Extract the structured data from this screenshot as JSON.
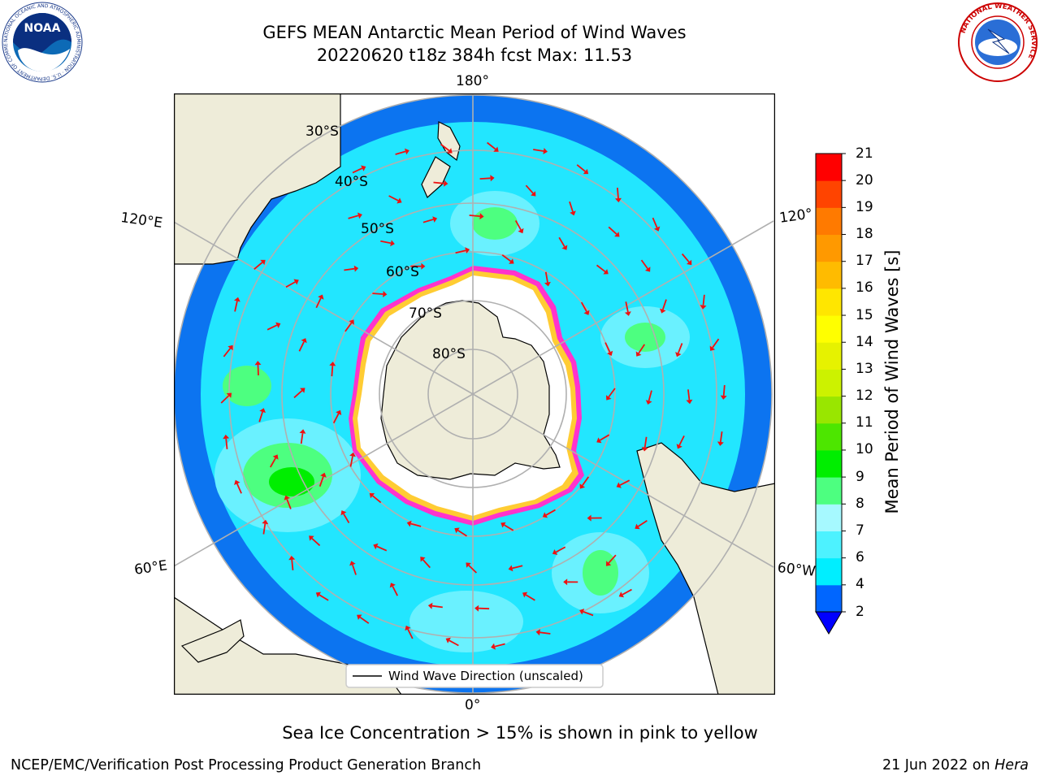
{
  "title": {
    "line1": "GEFS MEAN Antarctic Mean Period of Wind Waves",
    "line2": "20220620 t18z 384h fcst   Max: 11.53"
  },
  "map": {
    "projection": "south-polar-stereographic",
    "lon_labels": {
      "top": "180°",
      "bottom": "0°",
      "upper_left": "120°E",
      "lower_left": "60°E",
      "upper_right": "120°",
      "lower_right": "60°W"
    },
    "lat_labels": [
      "30°S",
      "40°S",
      "50°S",
      "60°S",
      "70°S",
      "80°S"
    ],
    "legend_label": "Wind Wave Direction (unscaled)",
    "colors": {
      "land": "#eeecd9",
      "sea_ice_interior": "#ffffff",
      "ice_edge_pink": "#ff33cc",
      "ice_edge_yellow": "#ffcc33",
      "grid": "#b0b0b0",
      "arrow": "#ee1111"
    }
  },
  "colorbar": {
    "label": "Mean Period of Wind Waves [s]",
    "ticks": [
      "2",
      "4",
      "6",
      "7",
      "8",
      "9",
      "10",
      "11",
      "12",
      "13",
      "14",
      "15",
      "16",
      "17",
      "18",
      "19",
      "20",
      "21"
    ],
    "levels": [
      2,
      4,
      6,
      7,
      8,
      9,
      10,
      11,
      12,
      13,
      14,
      15,
      16,
      17,
      18,
      19,
      20,
      21
    ],
    "colors": [
      "#0066ff",
      "#00eeff",
      "#4df2ff",
      "#a6f9ff",
      "#4dff80",
      "#00ee00",
      "#4de600",
      "#99e600",
      "#ccf200",
      "#e6f200",
      "#ffff00",
      "#ffe600",
      "#ffbb00",
      "#ff9900",
      "#ff7a00",
      "#ff4400",
      "#ff0000"
    ],
    "under_color": "#0000ff"
  },
  "note": "Sea Ice Concentration > 15% is shown in pink to yellow",
  "footer": {
    "left": "NCEP/EMC/Verification Post Processing Product Generation Branch",
    "right_date": "21 Jun 2022 on ",
    "right_host": "Hera"
  },
  "logos": {
    "noaa": {
      "text": "NOAA",
      "ring_text": "NATIONAL OCEANIC AND ATMOSPHERIC ADMINISTRATION · U.S. DEPARTMENT OF COMMERCE"
    },
    "nws": {
      "ring_text": "NATIONAL WEATHER SERVICE"
    }
  }
}
